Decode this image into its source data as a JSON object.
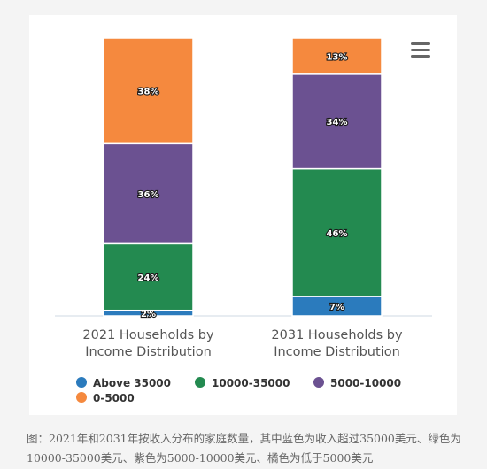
{
  "chart_data": {
    "type": "bar",
    "stacked": true,
    "percent": true,
    "categories": [
      "2021 Households by Income Distribution",
      "2031 Households by Income Distribution"
    ],
    "category_lines": [
      [
        "2021 Households by",
        "Income Distribution"
      ],
      [
        "2031 Households by",
        "Income Distribution"
      ]
    ],
    "series": [
      {
        "name": "Above 35000",
        "color": "#2b7bbd",
        "values": [
          2,
          7
        ]
      },
      {
        "name": "10000-35000",
        "color": "#238a50",
        "values": [
          24,
          46
        ]
      },
      {
        "name": "5000-10000",
        "color": "#6b5191",
        "values": [
          36,
          34
        ]
      },
      {
        "name": "0-5000",
        "color": "#f5893e",
        "values": [
          38,
          13
        ]
      }
    ],
    "data_label_suffix": "%",
    "legend_position": "bottom",
    "grid": false,
    "ylim": [
      0,
      100
    ]
  },
  "caption": "图：2021年和2031年按收入分布的家庭数量，其中蓝色为收入超过35000美元、绿色为10000-35000美元、紫色为5000-10000美元、橘色为低于5000美元",
  "menu_icon": "hamburger-menu-icon"
}
